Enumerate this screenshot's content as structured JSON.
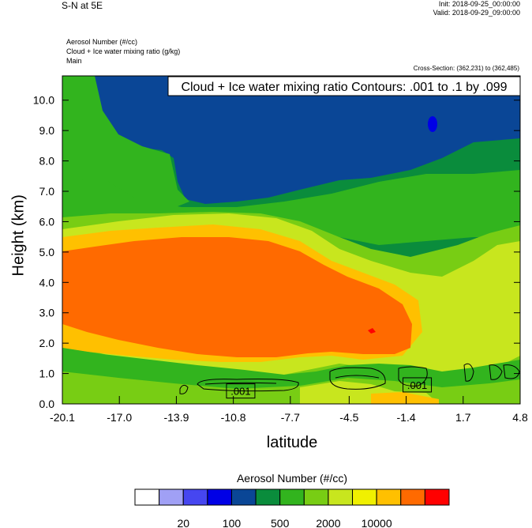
{
  "header": {
    "title": "S-N at 5E",
    "init": "Init: 2018-09-25_00:00:00",
    "valid": "Valid: 2018-09-29_09:00:00",
    "field1": "Aerosol Number   (#/cc)",
    "field2": "Cloud + Ice water mixing ratio   (g/kg)",
    "field3": "Main",
    "cross_section": "Cross-Section: (362,231) to (362,485)"
  },
  "chart_data": {
    "type": "heatmap",
    "title": "S-N at 5E",
    "xlabel": "latitude",
    "ylabel": "Height (km)",
    "x_ticks": [
      "-20.1",
      "-17.0",
      "-13.9",
      "-10.8",
      "-7.7",
      "-4.5",
      "-1.4",
      "1.7",
      "4.8"
    ],
    "x_range": [
      -20.1,
      4.8
    ],
    "y_ticks": [
      "0.0",
      "1.0",
      "2.0",
      "3.0",
      "4.0",
      "5.0",
      "6.0",
      "7.0",
      "8.0",
      "9.0",
      "10.0"
    ],
    "y_range": [
      0.0,
      10.8
    ],
    "contour_annotation": "Cloud + Ice water mixing ratio Contours: .001 to .1 by .099",
    "contour_labels": [
      {
        "text": ".001",
        "lat": -10.4,
        "z": 0.4
      },
      {
        "text": ".001",
        "lat": -0.8,
        "z": 0.6
      }
    ],
    "colorbar": {
      "title": "Aerosol Number  (#/cc)",
      "colors": [
        "#ffffff",
        "#a0a0f5",
        "#4646f0",
        "#0000e6",
        "#0a4696",
        "#0a8c3c",
        "#32b41e",
        "#78cd14",
        "#c8e61e",
        "#f0f000",
        "#ffc000",
        "#ff6a00",
        "#ff0000"
      ],
      "tick_labels": [
        "20",
        "100",
        "500",
        "2000",
        "10000"
      ]
    }
  }
}
